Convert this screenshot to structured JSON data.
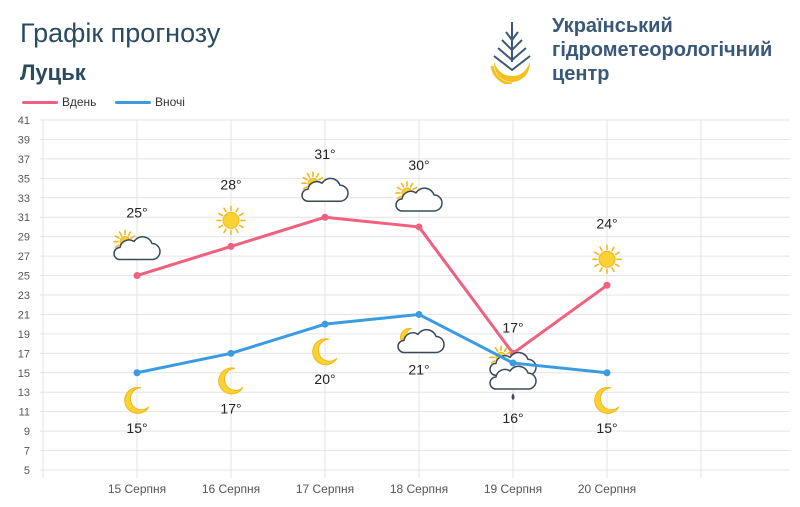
{
  "header": {
    "title": "Графік прогнозу",
    "city": "Луцьк",
    "org_lines": [
      "Український",
      "гідрометеорологічний",
      "центр"
    ]
  },
  "legend": [
    {
      "label": "Вдень",
      "color": "#f0607f"
    },
    {
      "label": "Вночі",
      "color": "#3b9be0"
    }
  ],
  "chart_data": {
    "type": "line",
    "categories": [
      "15 Серпня",
      "16 Серпня",
      "17 Серпня",
      "18 Серпня",
      "19 Серпня",
      "20 Серпня"
    ],
    "ylim": [
      5,
      41
    ],
    "yticks": [
      5,
      7,
      9,
      11,
      13,
      15,
      17,
      19,
      21,
      23,
      25,
      27,
      29,
      31,
      33,
      35,
      37,
      39,
      41
    ],
    "grid": true,
    "legend_position": "top-left",
    "series": [
      {
        "name": "Вдень",
        "color": "#f0607f",
        "values": [
          25,
          28,
          31,
          30,
          17,
          24
        ],
        "labels": [
          "25°",
          "28°",
          "31°",
          "30°",
          "17°",
          "24°"
        ],
        "icons": [
          "sun-cloud-icon",
          "sun-icon",
          "sun-cloud-icon",
          "sun-cloud-icon",
          "sun-cloud-rain-icon",
          "sun-icon"
        ]
      },
      {
        "name": "Вночі",
        "color": "#3b9be0",
        "values": [
          15,
          17,
          20,
          21,
          16,
          15
        ],
        "labels": [
          "15°",
          "17°",
          "20°",
          "21°",
          "16°",
          "15°"
        ],
        "icons": [
          "moon-icon",
          "moon-icon",
          "moon-icon",
          "moon-cloud-icon",
          "cloud-rain-icon",
          "moon-icon"
        ]
      }
    ]
  }
}
